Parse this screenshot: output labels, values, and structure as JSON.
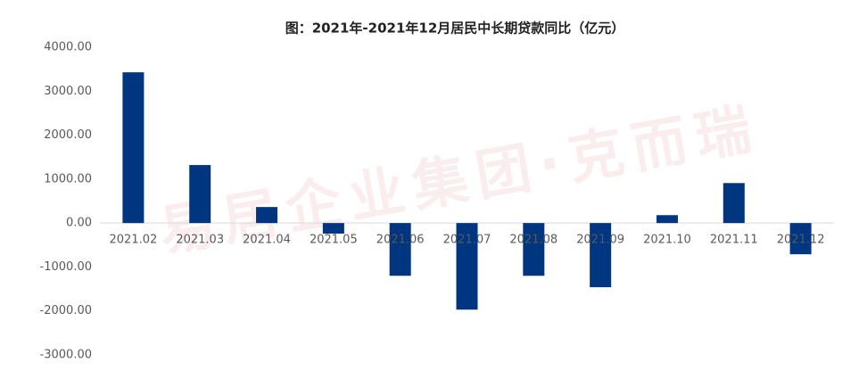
{
  "chart_data": {
    "type": "bar",
    "title": "图：2021年-2021年12月居民中长期贷款同比（亿元）",
    "watermark": "易居企业集团·克而瑞",
    "categories": [
      "2021.02",
      "2021.03",
      "2021.04",
      "2021.05",
      "2021.06",
      "2021.07",
      "2021.08",
      "2021.09",
      "2021.10",
      "2021.11",
      "2021.12"
    ],
    "values": [
      3430,
      1320,
      365,
      -240,
      -1200,
      -1970,
      -1200,
      -1460,
      180,
      910,
      -710
    ],
    "color": "#003580",
    "ylim": [
      -3000,
      4000
    ],
    "yticks": [
      {
        "value": -3000,
        "label": "-3000.00"
      },
      {
        "value": -2000,
        "label": "-2000.00"
      },
      {
        "value": -1000,
        "label": "-1000.00"
      },
      {
        "value": 0,
        "label": "0.00"
      },
      {
        "value": 1000,
        "label": "1000.00"
      },
      {
        "value": 2000,
        "label": "2000.00"
      },
      {
        "value": 3000,
        "label": "3000.00"
      },
      {
        "value": 4000,
        "label": "4000.00"
      }
    ],
    "grid": false
  }
}
